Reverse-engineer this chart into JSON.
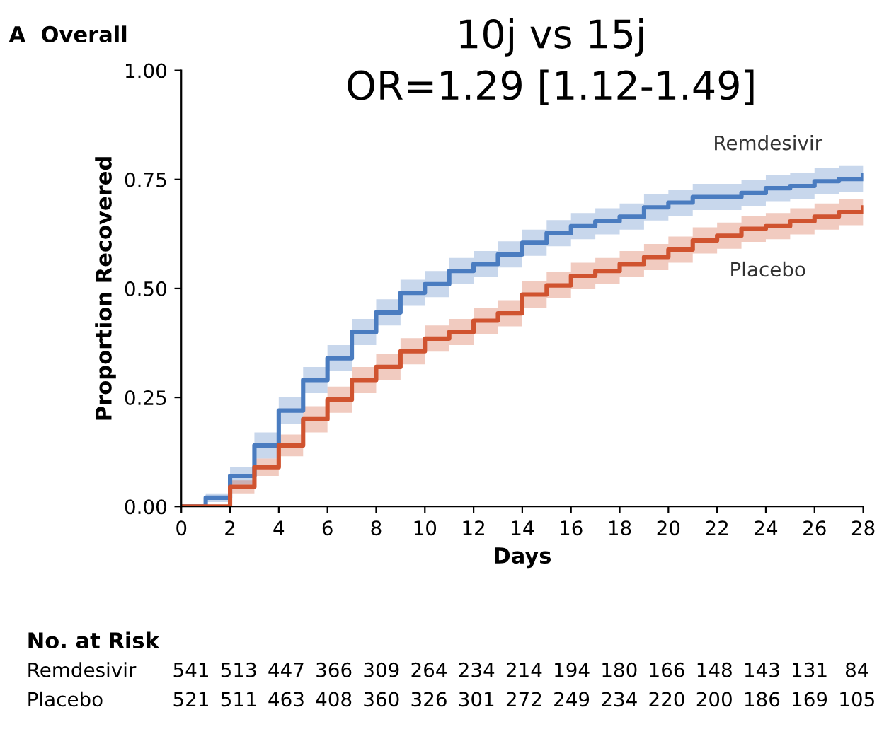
{
  "chart_data": {
    "type": "step",
    "title": "10j vs 15j",
    "subtitle": "OR=1.29 [1.12-1.49]",
    "xlabel": "Days",
    "ylabel": "Proportion Recovered",
    "x": [
      0,
      1,
      2,
      3,
      4,
      5,
      6,
      7,
      8,
      9,
      10,
      11,
      12,
      13,
      14,
      15,
      16,
      17,
      18,
      19,
      20,
      21,
      22,
      23,
      24,
      25,
      26,
      27,
      28
    ],
    "series": [
      {
        "name": "Remdesivir",
        "color": "#4a7cc0",
        "values": [
          0,
          0.02,
          0.07,
          0.14,
          0.22,
          0.29,
          0.34,
          0.4,
          0.445,
          0.49,
          0.51,
          0.54,
          0.556,
          0.578,
          0.605,
          0.627,
          0.643,
          0.654,
          0.665,
          0.686,
          0.697,
          0.71,
          0.71,
          0.719,
          0.73,
          0.735,
          0.746,
          0.751,
          0.76
        ],
        "lower": [
          0,
          0.01,
          0.05,
          0.11,
          0.19,
          0.26,
          0.31,
          0.37,
          0.415,
          0.46,
          0.48,
          0.51,
          0.526,
          0.548,
          0.575,
          0.597,
          0.613,
          0.624,
          0.635,
          0.656,
          0.667,
          0.68,
          0.68,
          0.689,
          0.7,
          0.705,
          0.716,
          0.721,
          0.73
        ],
        "upper": [
          0,
          0.03,
          0.09,
          0.17,
          0.25,
          0.32,
          0.37,
          0.43,
          0.475,
          0.52,
          0.54,
          0.57,
          0.586,
          0.608,
          0.635,
          0.657,
          0.673,
          0.684,
          0.695,
          0.716,
          0.727,
          0.74,
          0.74,
          0.749,
          0.76,
          0.765,
          0.776,
          0.781,
          0.79
        ]
      },
      {
        "name": "Placebo",
        "color": "#d0532f",
        "values": [
          0,
          0,
          0.045,
          0.09,
          0.14,
          0.2,
          0.245,
          0.29,
          0.32,
          0.356,
          0.385,
          0.4,
          0.426,
          0.443,
          0.486,
          0.507,
          0.529,
          0.54,
          0.556,
          0.572,
          0.589,
          0.61,
          0.621,
          0.637,
          0.643,
          0.654,
          0.665,
          0.675,
          0.686
        ],
        "lower": [
          0,
          0,
          0.03,
          0.07,
          0.115,
          0.17,
          0.215,
          0.26,
          0.29,
          0.326,
          0.355,
          0.37,
          0.396,
          0.413,
          0.456,
          0.477,
          0.499,
          0.51,
          0.526,
          0.542,
          0.559,
          0.58,
          0.591,
          0.607,
          0.613,
          0.624,
          0.635,
          0.645,
          0.656
        ],
        "upper": [
          0,
          0,
          0.06,
          0.11,
          0.165,
          0.23,
          0.275,
          0.32,
          0.35,
          0.386,
          0.415,
          0.43,
          0.456,
          0.473,
          0.516,
          0.537,
          0.559,
          0.57,
          0.586,
          0.602,
          0.619,
          0.64,
          0.651,
          0.667,
          0.673,
          0.684,
          0.695,
          0.705,
          0.716
        ]
      }
    ],
    "xlim": [
      0,
      28
    ],
    "xticks": [
      0,
      2,
      4,
      6,
      8,
      10,
      12,
      14,
      16,
      18,
      20,
      22,
      24,
      26,
      28
    ],
    "ylim": [
      0,
      1
    ],
    "yticks": [
      {
        "value": 0,
        "label": "0.00"
      },
      {
        "value": 0.25,
        "label": "0.25"
      },
      {
        "value": 0.5,
        "label": "0.50"
      },
      {
        "value": 0.75,
        "label": "0.75"
      },
      {
        "value": 1,
        "label": "1.00"
      }
    ],
    "grid": false,
    "legend": false,
    "marker": "none",
    "line_style": "solid",
    "annotations": [
      "A  Overall",
      "No. at Risk",
      "Remdesivir 541 513 447 366 309 264 234 214 194 180 166 148 143 131 84",
      "Placebo 521 511 463 408 360 326 301 272 249 234 220 200 186 169 105"
    ]
  }
}
